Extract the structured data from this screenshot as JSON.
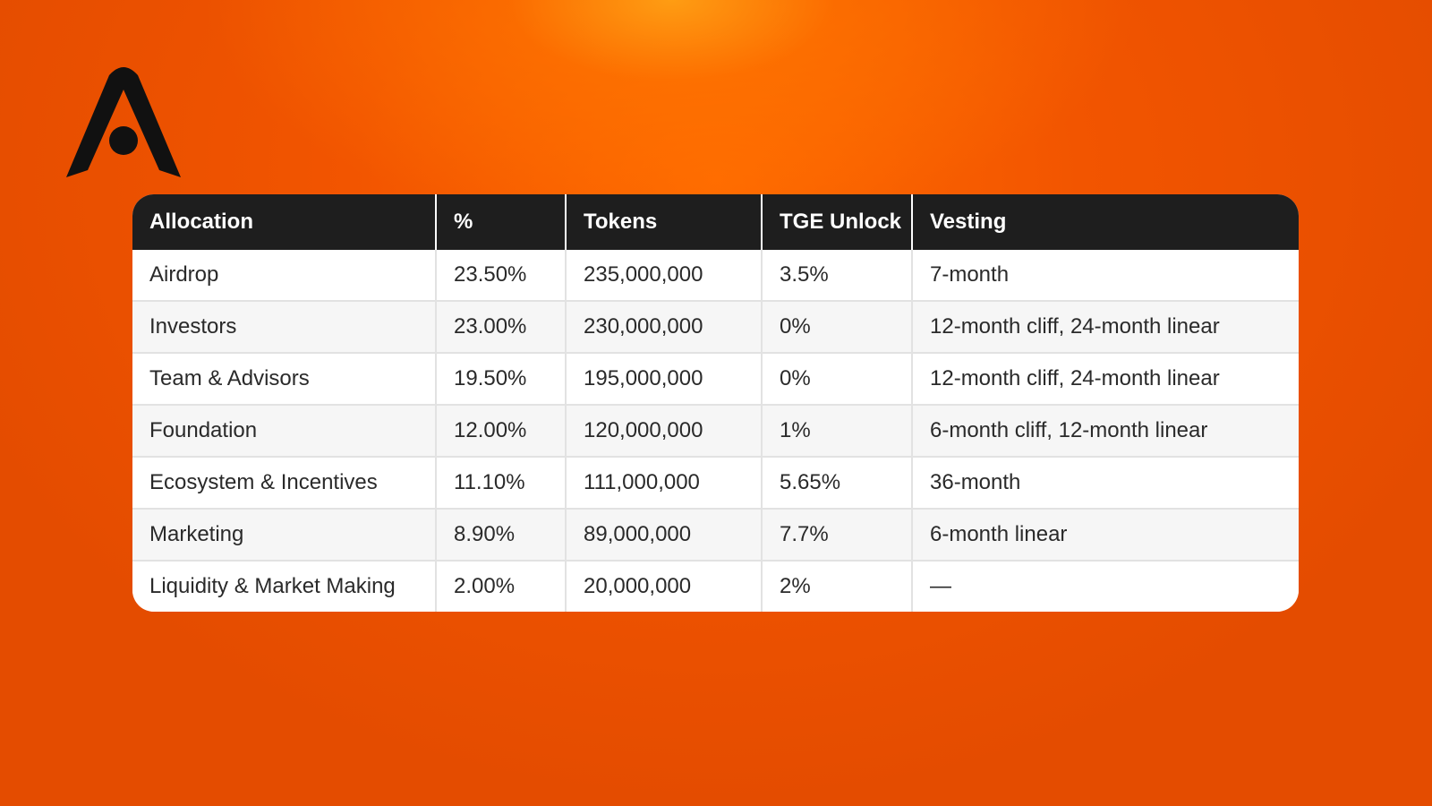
{
  "logo": {
    "icon": "stylized-letter-a-logo-icon",
    "color": "#111111"
  },
  "table": {
    "headers": [
      "Allocation",
      "%",
      "Tokens",
      "TGE Unlock",
      "Vesting"
    ],
    "rows": [
      [
        "Airdrop",
        "23.50%",
        "235,000,000",
        "3.5%",
        "7-month"
      ],
      [
        "Investors",
        "23.00%",
        "230,000,000",
        "0%",
        "12-month cliff, 24-month linear"
      ],
      [
        "Team & Advisors",
        "19.50%",
        "195,000,000",
        "0%",
        "12-month cliff, 24-month linear"
      ],
      [
        "Foundation",
        "12.00%",
        "120,000,000",
        "1%",
        "6-month cliff, 12-month linear"
      ],
      [
        "Ecosystem & Incentives",
        "11.10%",
        "111,000,000",
        "5.65%",
        "36-month"
      ],
      [
        "Marketing",
        "8.90%",
        "89,000,000",
        "7.7%",
        "6-month linear"
      ],
      [
        "Liquidity & Market Making",
        "2.00%",
        "20,000,000",
        "2%",
        "—"
      ]
    ]
  },
  "colors": {
    "background": "#f25500",
    "header_bg": "#1e1e1e",
    "header_text": "#ffffff",
    "row_alt": "#f6f6f6"
  }
}
